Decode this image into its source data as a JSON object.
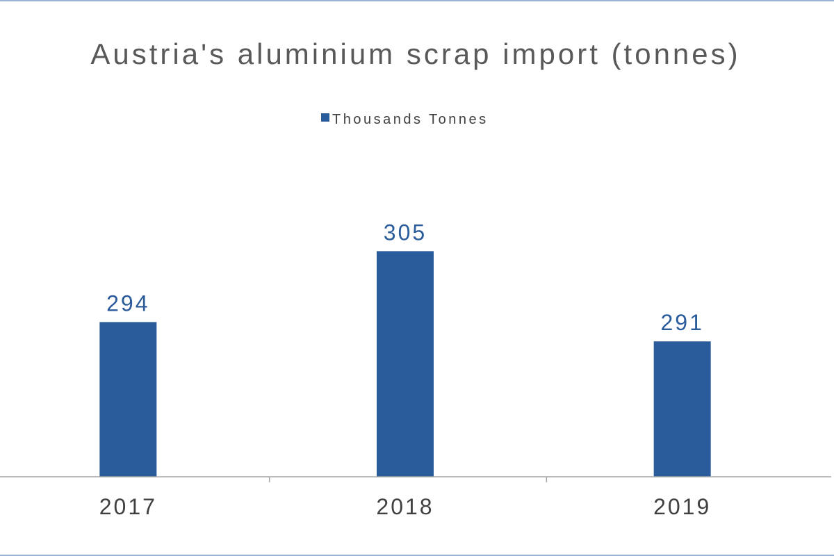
{
  "chart_data": {
    "type": "bar",
    "title": "Austria's aluminium scrap import (tonnes)",
    "categories": [
      "2017",
      "2018",
      "2019"
    ],
    "series": [
      {
        "name": "Thousands Tonnes",
        "values": [
          294,
          305,
          291
        ],
        "color": "#2a5b9b"
      }
    ],
    "data_labels": [
      "294",
      "305",
      "291"
    ],
    "legend_position": "top-center",
    "grid": false,
    "ylim": [
      270,
      310
    ],
    "colors": {
      "bar": "#2a5b9b",
      "axis": "#a6a6a6",
      "frame": "#9db3d6"
    }
  }
}
